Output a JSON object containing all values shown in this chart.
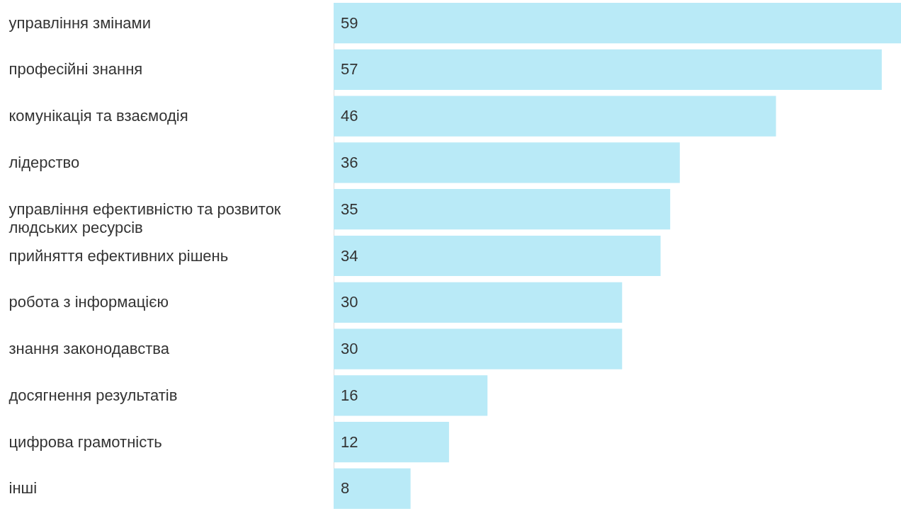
{
  "chart_data": {
    "type": "bar",
    "orientation": "horizontal",
    "data_labels": true,
    "grid": false,
    "categories": [
      "управління змінами",
      "професійні знання",
      "комунікація та взаємодія",
      "лідерство",
      "управління ефективністю та розвиток людських ресурсів",
      "прийняття ефективних рішень",
      "робота з інформацією",
      "знання законодавства",
      "досягнення результатів",
      "цифрова грамотність",
      "інші"
    ],
    "values": [
      59,
      57,
      46,
      36,
      35,
      34,
      30,
      30,
      16,
      12,
      8
    ],
    "color": "#b9eaf7"
  }
}
